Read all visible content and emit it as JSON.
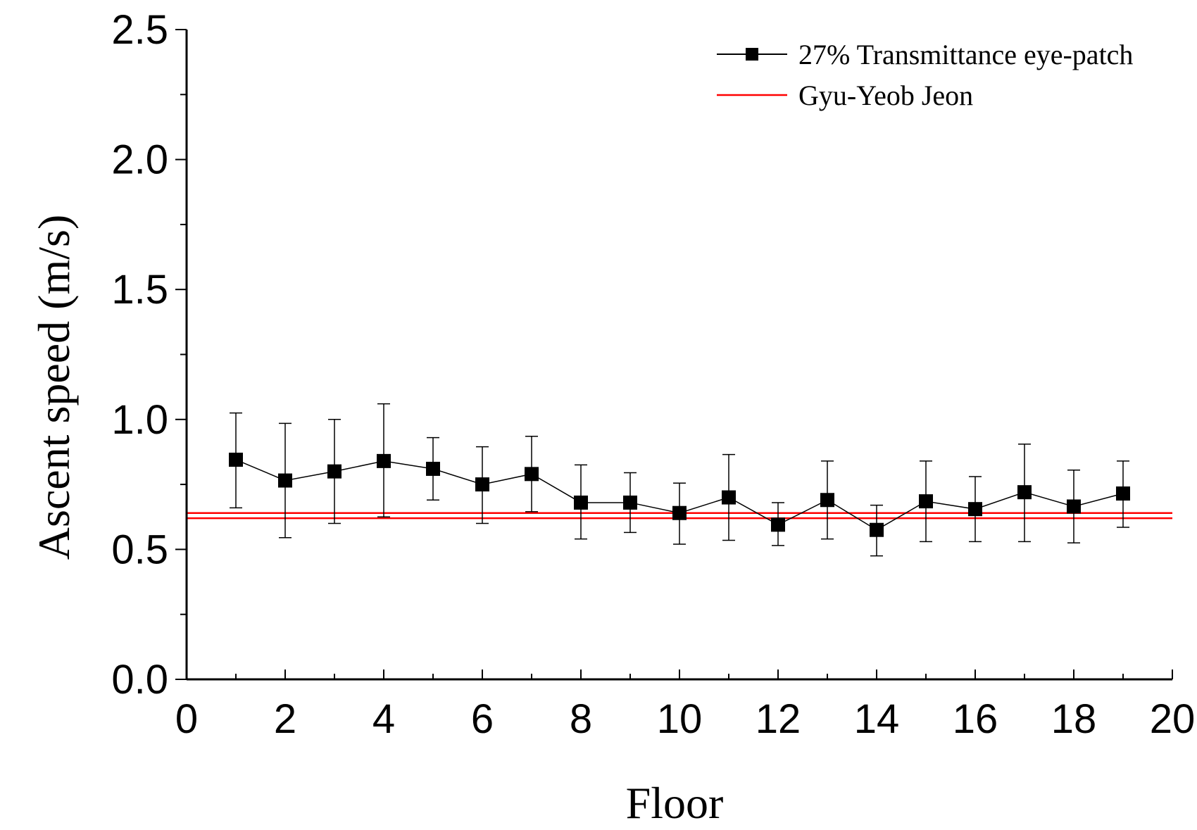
{
  "chart_data": {
    "type": "line",
    "xlabel": "Floor",
    "ylabel": "Ascent speed (m/s)",
    "xlim": [
      0,
      20
    ],
    "ylim": [
      0.0,
      2.5
    ],
    "x_ticks": [
      "0",
      "2",
      "4",
      "6",
      "8",
      "10",
      "12",
      "14",
      "16",
      "18",
      "20"
    ],
    "y_ticks": [
      "0.0",
      "0.5",
      "1.0",
      "1.5",
      "2.0",
      "2.5"
    ],
    "grid": false,
    "legend_position": "top-right",
    "series": [
      {
        "name": "27% Transmittance eye-patch",
        "color": "#000000",
        "marker": "square",
        "x": [
          1,
          2,
          3,
          4,
          5,
          6,
          7,
          8,
          9,
          10,
          11,
          12,
          13,
          14,
          15,
          16,
          17,
          18,
          19
        ],
        "y": [
          0.845,
          0.765,
          0.8,
          0.84,
          0.81,
          0.75,
          0.79,
          0.68,
          0.68,
          0.64,
          0.7,
          0.595,
          0.69,
          0.575,
          0.685,
          0.655,
          0.72,
          0.665,
          0.715
        ],
        "err_upper": [
          1.025,
          0.985,
          1.0,
          1.06,
          0.93,
          0.895,
          0.935,
          0.825,
          0.795,
          0.755,
          0.865,
          0.68,
          0.84,
          0.67,
          0.84,
          0.78,
          0.905,
          0.805,
          0.84
        ],
        "err_lower": [
          0.66,
          0.545,
          0.6,
          0.625,
          0.69,
          0.6,
          0.645,
          0.54,
          0.565,
          0.52,
          0.535,
          0.515,
          0.54,
          0.475,
          0.53,
          0.53,
          0.53,
          0.525,
          0.585
        ]
      },
      {
        "name": "Gyu-Yeob Jeon",
        "color": "#ff0000",
        "type": "hline",
        "y_values": [
          0.64,
          0.62
        ]
      }
    ]
  }
}
